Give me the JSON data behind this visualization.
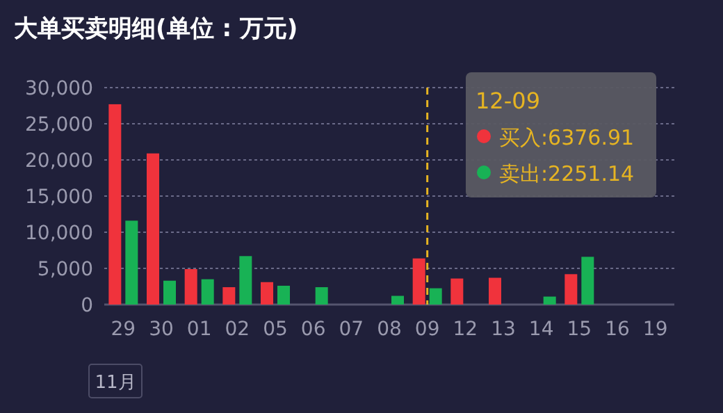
{
  "chart_data": {
    "type": "bar",
    "title": "大单买卖明细(单位 : 万元)",
    "categories": [
      "29",
      "30",
      "01",
      "02",
      "05",
      "06",
      "07",
      "08",
      "09",
      "12",
      "13",
      "14",
      "15",
      "16",
      "19"
    ],
    "series": [
      {
        "name": "买入:6376.91",
        "color": "#f0333c",
        "values": [
          27700,
          20900,
          4900,
          2400,
          3100,
          null,
          null,
          null,
          6376.91,
          3600,
          3700,
          null,
          4200,
          null,
          null
        ]
      },
      {
        "name": "卖出:2251.14",
        "color": "#18b255",
        "values": [
          11600,
          3300,
          3500,
          6700,
          2600,
          2400,
          null,
          1200,
          2251.14,
          null,
          null,
          1100,
          6600,
          null,
          null
        ]
      }
    ],
    "ylim": [
      0,
      30000
    ],
    "yticks": [
      {
        "value": 0,
        "label": "0"
      },
      {
        "value": 5000,
        "label": "5,000"
      },
      {
        "value": 10000,
        "label": "10,000"
      },
      {
        "value": 15000,
        "label": "15,000"
      },
      {
        "value": 20000,
        "label": "20,000"
      },
      {
        "value": 25000,
        "label": "25,000"
      },
      {
        "value": 30000,
        "label": "30,000"
      }
    ],
    "grid": "y",
    "ref_lines": [
      {
        "axis": "x",
        "value": "09",
        "color": "#e6b422",
        "line_style": "dashed"
      }
    ],
    "legend": "top right",
    "legend_title": "12-09",
    "annotations": [
      "11月"
    ]
  }
}
